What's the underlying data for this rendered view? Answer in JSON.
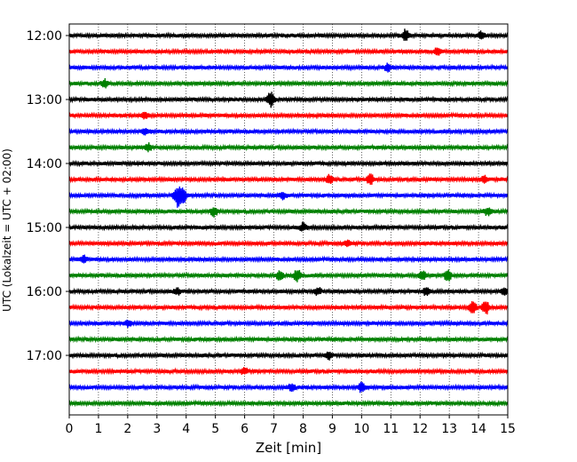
{
  "chart_data": {
    "type": "line",
    "subtype": "helicorder-seismogram",
    "xlabel": "Zeit  [min]",
    "ylabel": "UTC (Lokalzeit = UTC + 02:00)",
    "xlim": [
      0,
      15
    ],
    "x_ticks": [
      0,
      1,
      2,
      3,
      4,
      5,
      6,
      7,
      8,
      9,
      10,
      11,
      12,
      13,
      14,
      15
    ],
    "x_tick_labels": [
      "0",
      "1",
      "2",
      "3",
      "4",
      "5",
      "6",
      "7",
      "8",
      "9",
      "10",
      "11",
      "12",
      "13",
      "14",
      "15"
    ],
    "y_tick_labels": [
      "12:00",
      "13:00",
      "14:00",
      "15:00",
      "16:00",
      "17:00"
    ],
    "y_tick_trace_index": [
      0,
      4,
      8,
      12,
      16,
      20
    ],
    "grid_x": true,
    "grid_style": "dotted",
    "trace_count": 24,
    "trace_interval_min": 15,
    "trace_colors": [
      "#000000",
      "#ff0000",
      "#0000ff",
      "#008000"
    ],
    "events": [
      {
        "trace": 0,
        "x": 11.5,
        "amp": 0.6
      },
      {
        "trace": 0,
        "x": 14.1,
        "amp": 0.4
      },
      {
        "trace": 1,
        "x": 12.6,
        "amp": 0.35
      },
      {
        "trace": 2,
        "x": 10.9,
        "amp": 0.4
      },
      {
        "trace": 3,
        "x": 1.2,
        "amp": 0.45
      },
      {
        "trace": 4,
        "x": 6.9,
        "amp": 0.9
      },
      {
        "trace": 5,
        "x": 2.6,
        "amp": 0.3
      },
      {
        "trace": 6,
        "x": 2.6,
        "amp": 0.3
      },
      {
        "trace": 7,
        "x": 2.7,
        "amp": 0.4
      },
      {
        "trace": 9,
        "x": 8.9,
        "amp": 0.5
      },
      {
        "trace": 9,
        "x": 10.3,
        "amp": 0.6
      },
      {
        "trace": 9,
        "x": 14.2,
        "amp": 0.4
      },
      {
        "trace": 10,
        "x": 3.7,
        "amp": 1.2
      },
      {
        "trace": 10,
        "x": 3.9,
        "amp": 0.8
      },
      {
        "trace": 10,
        "x": 7.3,
        "amp": 0.4
      },
      {
        "trace": 11,
        "x": 4.95,
        "amp": 0.5
      },
      {
        "trace": 11,
        "x": 14.3,
        "amp": 0.4
      },
      {
        "trace": 12,
        "x": 8.0,
        "amp": 0.45
      },
      {
        "trace": 13,
        "x": 9.5,
        "amp": 0.3
      },
      {
        "trace": 14,
        "x": 0.5,
        "amp": 0.35
      },
      {
        "trace": 15,
        "x": 7.2,
        "amp": 0.5
      },
      {
        "trace": 15,
        "x": 7.8,
        "amp": 0.7
      },
      {
        "trace": 15,
        "x": 12.1,
        "amp": 0.5
      },
      {
        "trace": 15,
        "x": 12.95,
        "amp": 0.6
      },
      {
        "trace": 16,
        "x": 3.7,
        "amp": 0.35
      },
      {
        "trace": 16,
        "x": 8.5,
        "amp": 0.4
      },
      {
        "trace": 16,
        "x": 12.2,
        "amp": 0.4
      },
      {
        "trace": 16,
        "x": 14.9,
        "amp": 0.4
      },
      {
        "trace": 17,
        "x": 13.8,
        "amp": 0.8
      },
      {
        "trace": 17,
        "x": 14.25,
        "amp": 0.8
      },
      {
        "trace": 18,
        "x": 2.0,
        "amp": 0.35
      },
      {
        "trace": 20,
        "x": 8.9,
        "amp": 0.4
      },
      {
        "trace": 21,
        "x": 6.0,
        "amp": 0.35
      },
      {
        "trace": 22,
        "x": 7.6,
        "amp": 0.35
      },
      {
        "trace": 22,
        "x": 10.0,
        "amp": 0.55
      }
    ]
  }
}
